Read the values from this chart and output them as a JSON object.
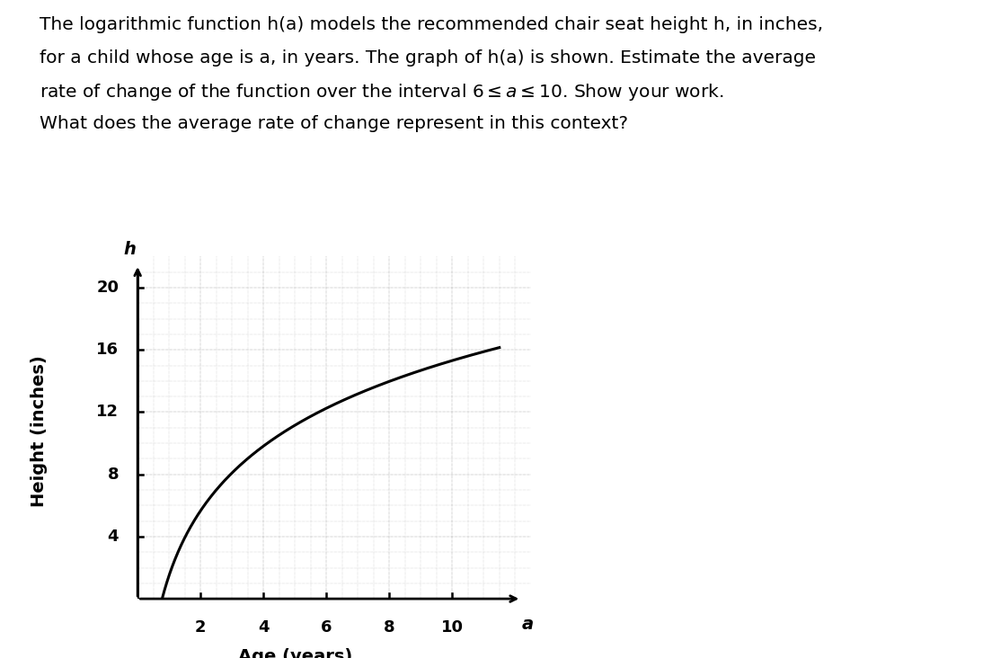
{
  "xlabel": "Age (years)",
  "ylabel": "Height (inches)",
  "x_axis_label_italic": "a",
  "y_axis_label_italic": "h",
  "xlim": [
    0,
    12.5
  ],
  "ylim": [
    0,
    22
  ],
  "xticks": [
    2,
    4,
    6,
    8,
    10
  ],
  "yticks": [
    4,
    8,
    12,
    16,
    20
  ],
  "curve_color": "#000000",
  "curve_linewidth": 2.2,
  "background_color": "#ffffff",
  "grid_color": "#999999",
  "log_A": 6.0,
  "log_B": 1.5,
  "title_lines": [
    "The logarithmic function h(a) models the recommended chair seat height h, in inches,",
    "for a child whose age is a, in years. The graph of h(a) is shown. Estimate the average",
    "rate of change of the function over the interval MATH. Show your work.",
    "What does the average rate of change represent in this context?"
  ],
  "title_fontsize": 14.5,
  "tick_label_fontsize": 13,
  "axis_label_fontsize": 14
}
